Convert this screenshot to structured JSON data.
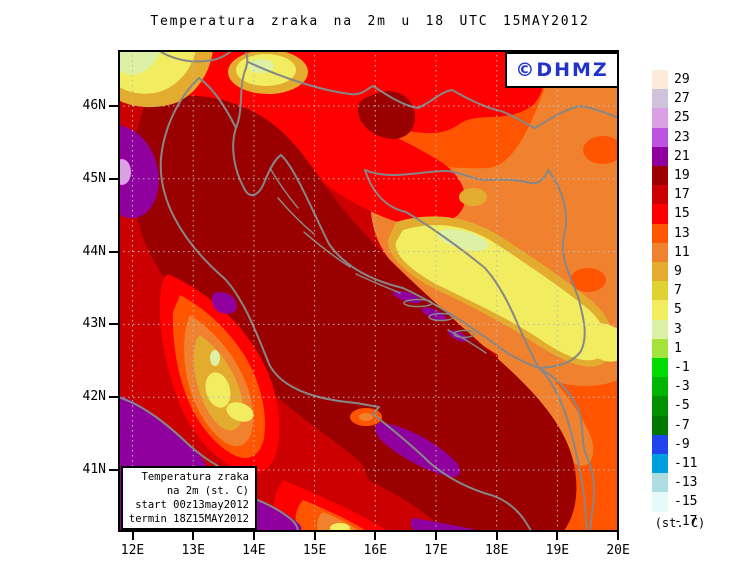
{
  "title": "Temperatura zraka na 2m u 18 UTC 15MAY2012",
  "logo": {
    "text": "©DHMZ",
    "color": "#2233CC"
  },
  "axes": {
    "lat_labels": [
      "46N",
      "45N",
      "44N",
      "43N",
      "42N",
      "41N"
    ],
    "lon_labels": [
      "12E",
      "13E",
      "14E",
      "15E",
      "16E",
      "17E",
      "18E",
      "19E",
      "20E"
    ]
  },
  "info_box": {
    "lines": [
      "Temperatura zraka",
      "na 2m (st. C)",
      "start 00z13may2012",
      "termin 18Z15MAY2012"
    ]
  },
  "colorbar": {
    "unit_label": "(st. C)",
    "entries": [
      {
        "label": "29",
        "color": "#FCEBD9"
      },
      {
        "label": "27",
        "color": "#CFC3DC"
      },
      {
        "label": "25",
        "color": "#DB9FE3"
      },
      {
        "label": "23",
        "color": "#BC54DF"
      },
      {
        "label": "21",
        "color": "#8F009F"
      },
      {
        "label": "19",
        "color": "#9B0000"
      },
      {
        "label": "17",
        "color": "#CC0000"
      },
      {
        "label": "15",
        "color": "#FF0000"
      },
      {
        "label": "13",
        "color": "#FF5500"
      },
      {
        "label": "11",
        "color": "#F0822F"
      },
      {
        "label": "9",
        "color": "#E3AC2E"
      },
      {
        "label": "7",
        "color": "#E0D233"
      },
      {
        "label": "5",
        "color": "#F2EC60"
      },
      {
        "label": "3",
        "color": "#DDF1A6"
      },
      {
        "label": "1",
        "color": "#A5E23B"
      },
      {
        "label": "-1",
        "color": "#00DC00"
      },
      {
        "label": "-3",
        "color": "#00B400"
      },
      {
        "label": "-5",
        "color": "#009000"
      },
      {
        "label": "-7",
        "color": "#007800"
      },
      {
        "label": "-9",
        "color": "#2244EE"
      },
      {
        "label": "-11",
        "color": "#00A0E0"
      },
      {
        "label": "-13",
        "color": "#ADDDE0"
      },
      {
        "label": "-15",
        "color": "#E6FAFA"
      },
      {
        "label": "-17",
        "color": "#FFFFFF"
      }
    ]
  }
}
